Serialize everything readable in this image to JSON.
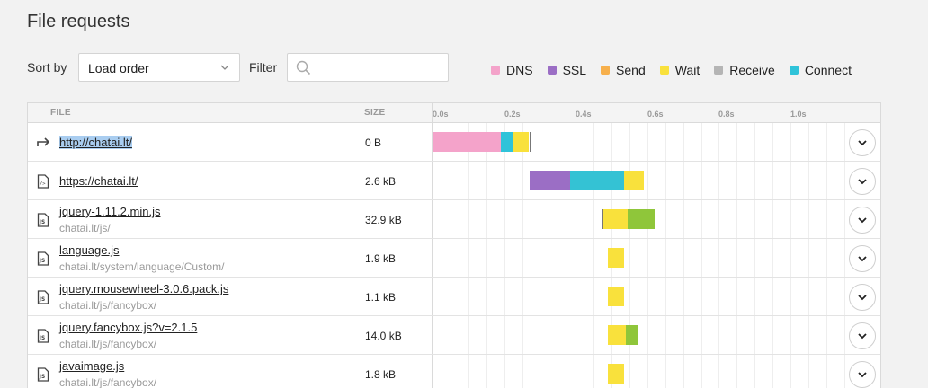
{
  "title": "File requests",
  "sort": {
    "label": "Sort by",
    "value": "Load order"
  },
  "filter": {
    "label": "Filter",
    "placeholder": "",
    "value": ""
  },
  "legend": [
    {
      "name": "DNS",
      "color": "#f4a3ca"
    },
    {
      "name": "SSL",
      "color": "#9b6ec5"
    },
    {
      "name": "Send",
      "color": "#f7b04c"
    },
    {
      "name": "Wait",
      "color": "#f9e13c"
    },
    {
      "name": "Receive",
      "color": "#b5b5b5"
    },
    {
      "name": "Connect",
      "color": "#2fc3d9"
    }
  ],
  "table": {
    "headers": {
      "file": "FILE",
      "size": "SIZE"
    },
    "ticks": [
      "0.0s",
      "0.2s",
      "0.4s",
      "0.6s",
      "0.8s",
      "1.0s"
    ],
    "rows": [
      {
        "icon": "redirect-icon",
        "name": "http://chatai.lt/",
        "path": "",
        "size": "0 B",
        "selected": true,
        "segments": [
          {
            "start": 0.0,
            "end": 0.19,
            "color": "#f4a3ca"
          },
          {
            "start": 0.19,
            "end": 0.225,
            "color": "#2fc3d9"
          },
          {
            "start": 0.225,
            "end": 0.268,
            "color": "#f9e13c"
          }
        ],
        "marker": 0.27
      },
      {
        "icon": "code-file-icon",
        "name": "https://chatai.lt/",
        "path": "",
        "size": "2.6 kB",
        "selected": false,
        "segments": [
          {
            "start": 0.27,
            "end": 0.385,
            "color": "#9b6ec5"
          },
          {
            "start": 0.385,
            "end": 0.535,
            "color": "#34c2d4"
          },
          {
            "start": 0.535,
            "end": 0.59,
            "color": "#f9e13c"
          }
        ]
      },
      {
        "icon": "js-file-icon",
        "name": "jquery-1.11.2.min.js",
        "path": "chatai.lt/js/",
        "size": "32.9 kB",
        "selected": false,
        "segments": [
          {
            "start": 0.475,
            "end": 0.545,
            "color": "#f9e13c"
          },
          {
            "start": 0.545,
            "end": 0.62,
            "color": "#8fc63a"
          }
        ],
        "marker": 0.475
      },
      {
        "icon": "js-file-icon",
        "name": "language.js",
        "path": "chatai.lt/system/language/Custom/",
        "size": "1.9 kB",
        "selected": false,
        "segments": [
          {
            "start": 0.49,
            "end": 0.535,
            "color": "#f9e13c"
          }
        ]
      },
      {
        "icon": "js-file-icon",
        "name": "jquery.mousewheel-3.0.6.pack.js",
        "path": "chatai.lt/js/fancybox/",
        "size": "1.1 kB",
        "selected": false,
        "segments": [
          {
            "start": 0.49,
            "end": 0.535,
            "color": "#f9e13c"
          }
        ]
      },
      {
        "icon": "js-file-icon",
        "name": "jquery.fancybox.js?v=2.1.5",
        "path": "chatai.lt/js/fancybox/",
        "size": "14.0 kB",
        "selected": false,
        "segments": [
          {
            "start": 0.49,
            "end": 0.54,
            "color": "#f9e13c"
          },
          {
            "start": 0.54,
            "end": 0.575,
            "color": "#8fc63a"
          }
        ]
      },
      {
        "icon": "js-file-icon",
        "name": "javaimage.js",
        "path": "chatai.lt/js/fancybox/",
        "size": "1.8 kB",
        "selected": false,
        "segments": [
          {
            "start": 0.49,
            "end": 0.535,
            "color": "#f9e13c"
          }
        ]
      }
    ]
  }
}
